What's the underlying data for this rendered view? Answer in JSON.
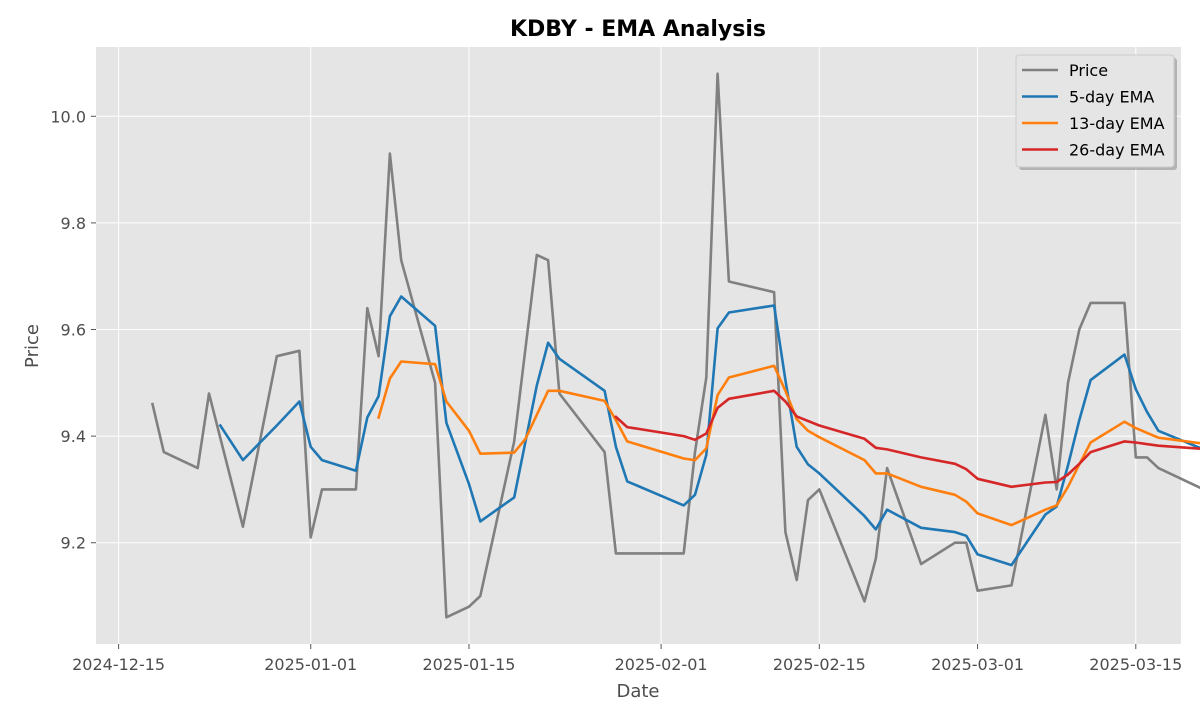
{
  "chart_data": {
    "type": "line",
    "title": "KDBY - EMA Analysis",
    "xlabel": "Date",
    "ylabel": "Price",
    "xlim": [
      "2024-12-13",
      "2025-03-19"
    ],
    "ylim": [
      9.01,
      10.13
    ],
    "x_ticks": [
      "2024-12-15",
      "2025-01-01",
      "2025-01-15",
      "2025-02-01",
      "2025-02-15",
      "2025-03-01",
      "2025-03-15"
    ],
    "y_ticks": [
      9.2,
      9.4,
      9.6,
      9.8,
      10.0
    ],
    "y_tick_labels": [
      "9.2",
      "9.4",
      "9.6",
      "9.8",
      "10.0"
    ],
    "grid": true,
    "legend_position": "top-right",
    "series": [
      {
        "name": "Price",
        "color": "#808080",
        "points": [
          [
            "2024-12-18",
            9.46
          ],
          [
            "2024-12-19",
            9.37
          ],
          [
            "2024-12-22",
            9.34
          ],
          [
            "2024-12-23",
            9.48
          ],
          [
            "2024-12-26",
            9.23
          ],
          [
            "2024-12-29",
            9.55
          ],
          [
            "2024-12-31",
            9.56
          ],
          [
            "2025-01-01",
            9.21
          ],
          [
            "2025-01-02",
            9.3
          ],
          [
            "2025-01-05",
            9.3
          ],
          [
            "2025-01-06",
            9.64
          ],
          [
            "2025-01-07",
            9.55
          ],
          [
            "2025-01-08",
            9.93
          ],
          [
            "2025-01-09",
            9.73
          ],
          [
            "2025-01-12",
            9.5
          ],
          [
            "2025-01-13",
            9.06
          ],
          [
            "2025-01-15",
            9.08
          ],
          [
            "2025-01-16",
            9.1
          ],
          [
            "2025-01-19",
            9.39
          ],
          [
            "2025-01-21",
            9.74
          ],
          [
            "2025-01-22",
            9.73
          ],
          [
            "2025-01-23",
            9.48
          ],
          [
            "2025-01-27",
            9.37
          ],
          [
            "2025-01-28",
            9.18
          ],
          [
            "2025-02-03",
            9.18
          ],
          [
            "2025-02-04",
            9.37
          ],
          [
            "2025-02-05",
            9.51
          ],
          [
            "2025-02-06",
            10.08
          ],
          [
            "2025-02-07",
            9.69
          ],
          [
            "2025-02-11",
            9.67
          ],
          [
            "2025-02-12",
            9.22
          ],
          [
            "2025-02-13",
            9.13
          ],
          [
            "2025-02-14",
            9.28
          ],
          [
            "2025-02-15",
            9.3
          ],
          [
            "2025-02-19",
            9.09
          ],
          [
            "2025-02-20",
            9.17
          ],
          [
            "2025-02-21",
            9.34
          ],
          [
            "2025-02-24",
            9.16
          ],
          [
            "2025-02-27",
            9.2
          ],
          [
            "2025-02-28",
            9.2
          ],
          [
            "2025-03-01",
            9.11
          ],
          [
            "2025-03-04",
            9.12
          ],
          [
            "2025-03-07",
            9.44
          ],
          [
            "2025-03-08",
            9.3
          ],
          [
            "2025-03-09",
            9.5
          ],
          [
            "2025-03-10",
            9.6
          ],
          [
            "2025-03-11",
            9.65
          ],
          [
            "2025-03-14",
            9.65
          ],
          [
            "2025-03-15",
            9.36
          ],
          [
            "2025-03-16",
            9.36
          ],
          [
            "2025-03-17",
            9.34
          ],
          [
            "2025-03-21",
            9.3
          ]
        ]
      },
      {
        "name": "5-day EMA",
        "color": "#1f77b4",
        "points": [
          [
            "2024-12-24",
            9.42
          ],
          [
            "2024-12-26",
            9.355
          ],
          [
            "2024-12-29",
            9.42
          ],
          [
            "2024-12-31",
            9.465
          ],
          [
            "2025-01-01",
            9.38
          ],
          [
            "2025-01-02",
            9.355
          ],
          [
            "2025-01-05",
            9.335
          ],
          [
            "2025-01-06",
            9.435
          ],
          [
            "2025-01-07",
            9.475
          ],
          [
            "2025-01-08",
            9.625
          ],
          [
            "2025-01-09",
            9.662
          ],
          [
            "2025-01-12",
            9.607
          ],
          [
            "2025-01-13",
            9.425
          ],
          [
            "2025-01-15",
            9.31
          ],
          [
            "2025-01-16",
            9.24
          ],
          [
            "2025-01-19",
            9.285
          ],
          [
            "2025-01-21",
            9.495
          ],
          [
            "2025-01-22",
            9.575
          ],
          [
            "2025-01-23",
            9.545
          ],
          [
            "2025-01-27",
            9.485
          ],
          [
            "2025-01-28",
            9.38
          ],
          [
            "2025-01-29",
            9.315
          ],
          [
            "2025-02-03",
            9.27
          ],
          [
            "2025-02-04",
            9.29
          ],
          [
            "2025-02-05",
            9.365
          ],
          [
            "2025-02-06",
            9.602
          ],
          [
            "2025-02-07",
            9.632
          ],
          [
            "2025-02-11",
            9.645
          ],
          [
            "2025-02-12",
            9.505
          ],
          [
            "2025-02-13",
            9.38
          ],
          [
            "2025-02-14",
            9.347
          ],
          [
            "2025-02-15",
            9.33
          ],
          [
            "2025-02-19",
            9.25
          ],
          [
            "2025-02-20",
            9.225
          ],
          [
            "2025-02-21",
            9.262
          ],
          [
            "2025-02-24",
            9.228
          ],
          [
            "2025-02-27",
            9.22
          ],
          [
            "2025-02-28",
            9.213
          ],
          [
            "2025-03-01",
            9.178
          ],
          [
            "2025-03-04",
            9.158
          ],
          [
            "2025-03-07",
            9.253
          ],
          [
            "2025-03-08",
            9.268
          ],
          [
            "2025-03-09",
            9.345
          ],
          [
            "2025-03-10",
            9.43
          ],
          [
            "2025-03-11",
            9.505
          ],
          [
            "2025-03-14",
            9.553
          ],
          [
            "2025-03-15",
            9.488
          ],
          [
            "2025-03-16",
            9.445
          ],
          [
            "2025-03-17",
            9.41
          ],
          [
            "2025-03-21",
            9.375
          ]
        ]
      },
      {
        "name": "13-day EMA",
        "color": "#ff7f0e",
        "points": [
          [
            "2025-01-07",
            9.435
          ],
          [
            "2025-01-08",
            9.508
          ],
          [
            "2025-01-09",
            9.54
          ],
          [
            "2025-01-12",
            9.535
          ],
          [
            "2025-01-13",
            9.465
          ],
          [
            "2025-01-15",
            9.41
          ],
          [
            "2025-01-16",
            9.367
          ],
          [
            "2025-01-19",
            9.369
          ],
          [
            "2025-01-20",
            9.395
          ],
          [
            "2025-01-21",
            9.44
          ],
          [
            "2025-01-22",
            9.485
          ],
          [
            "2025-01-23",
            9.485
          ],
          [
            "2025-01-27",
            9.466
          ],
          [
            "2025-01-28",
            9.43
          ],
          [
            "2025-01-29",
            9.39
          ],
          [
            "2025-02-03",
            9.358
          ],
          [
            "2025-02-04",
            9.355
          ],
          [
            "2025-02-05",
            9.377
          ],
          [
            "2025-02-06",
            9.477
          ],
          [
            "2025-02-07",
            9.51
          ],
          [
            "2025-02-11",
            9.532
          ],
          [
            "2025-02-12",
            9.485
          ],
          [
            "2025-02-13",
            9.432
          ],
          [
            "2025-02-14",
            9.41
          ],
          [
            "2025-02-15",
            9.398
          ],
          [
            "2025-02-19",
            9.355
          ],
          [
            "2025-02-20",
            9.33
          ],
          [
            "2025-02-21",
            9.33
          ],
          [
            "2025-02-24",
            9.305
          ],
          [
            "2025-02-27",
            9.29
          ],
          [
            "2025-02-28",
            9.277
          ],
          [
            "2025-03-01",
            9.255
          ],
          [
            "2025-03-04",
            9.233
          ],
          [
            "2025-03-07",
            9.262
          ],
          [
            "2025-03-08",
            9.27
          ],
          [
            "2025-03-09",
            9.305
          ],
          [
            "2025-03-10",
            9.347
          ],
          [
            "2025-03-11",
            9.388
          ],
          [
            "2025-03-14",
            9.427
          ],
          [
            "2025-03-15",
            9.415
          ],
          [
            "2025-03-17",
            9.397
          ],
          [
            "2025-03-21",
            9.386
          ]
        ]
      },
      {
        "name": "26-day EMA",
        "color": "#d62728",
        "points": [
          [
            "2025-01-28",
            9.436
          ],
          [
            "2025-01-29",
            9.417
          ],
          [
            "2025-02-03",
            9.4
          ],
          [
            "2025-02-04",
            9.393
          ],
          [
            "2025-02-05",
            9.405
          ],
          [
            "2025-02-06",
            9.453
          ],
          [
            "2025-02-07",
            9.47
          ],
          [
            "2025-02-11",
            9.485
          ],
          [
            "2025-02-12",
            9.465
          ],
          [
            "2025-02-13",
            9.437
          ],
          [
            "2025-02-15",
            9.42
          ],
          [
            "2025-02-19",
            9.395
          ],
          [
            "2025-02-20",
            9.378
          ],
          [
            "2025-02-21",
            9.375
          ],
          [
            "2025-02-24",
            9.36
          ],
          [
            "2025-02-27",
            9.348
          ],
          [
            "2025-02-28",
            9.338
          ],
          [
            "2025-03-01",
            9.32
          ],
          [
            "2025-03-04",
            9.305
          ],
          [
            "2025-03-07",
            9.313
          ],
          [
            "2025-03-08",
            9.314
          ],
          [
            "2025-03-09",
            9.328
          ],
          [
            "2025-03-10",
            9.348
          ],
          [
            "2025-03-11",
            9.37
          ],
          [
            "2025-03-14",
            9.39
          ],
          [
            "2025-03-15",
            9.388
          ],
          [
            "2025-03-17",
            9.382
          ],
          [
            "2025-03-21",
            9.376
          ]
        ]
      }
    ]
  }
}
